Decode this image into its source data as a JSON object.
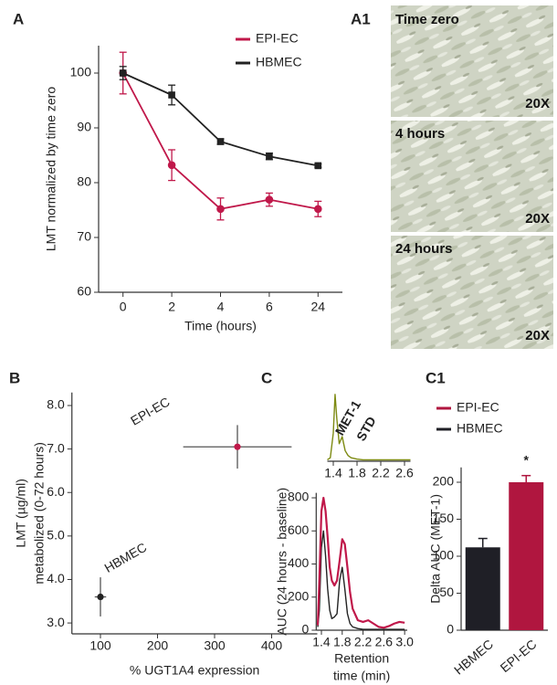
{
  "chart_data": [
    {
      "panel": "A",
      "type": "line",
      "categories": [
        "0",
        "2",
        "4",
        "6",
        "24"
      ],
      "xlabel": "Time (hours)",
      "ylabel": "LMT normalized by time zero",
      "ylim": [
        60,
        105
      ],
      "yticks": [
        60,
        70,
        80,
        90,
        100
      ],
      "legend": "upper right",
      "markers": true,
      "series": [
        {
          "name": "EPI-EC",
          "color": "#c0184a",
          "marker": "circle",
          "values": [
            100,
            83.2,
            75.2,
            76.9,
            75.2
          ],
          "errors": [
            3.8,
            2.8,
            2,
            1.2,
            1.4
          ]
        },
        {
          "name": "HBMEC",
          "color": "#222222",
          "marker": "square",
          "values": [
            100,
            96,
            87.5,
            84.8,
            83.1
          ],
          "errors": [
            1.2,
            1.8,
            0.5,
            0.6,
            0.3
          ]
        }
      ]
    },
    {
      "panel": "B",
      "type": "scatter",
      "xlabel": "% UGT1A4 expression",
      "ylabel": [
        "LMT (µg/ml)",
        "metabolized (0-72 hours)"
      ],
      "xlim": [
        50,
        480
      ],
      "xticks": [
        100,
        200,
        300,
        400
      ],
      "ylim": [
        2.75,
        8.3
      ],
      "yticks": [
        {
          "value": 3,
          "label": "3.0"
        },
        {
          "value": 4,
          "label": "4.0"
        },
        {
          "value": 5,
          "label": "5.0"
        },
        {
          "value": 6,
          "label": "6.0"
        },
        {
          "value": 7,
          "label": "7.0"
        },
        {
          "value": 8,
          "label": "8.0"
        }
      ],
      "series": [
        {
          "name": "EPI-EC",
          "color": "#c0184a",
          "x": [
            340
          ],
          "y": [
            7.05
          ],
          "xerr": [
            95
          ],
          "yerr": [
            0.5
          ]
        },
        {
          "name": "HBMEC",
          "color": "#222222",
          "x": [
            100
          ],
          "y": [
            3.6
          ],
          "xerr": [
            10
          ],
          "yerr": [
            0.45
          ]
        }
      ]
    },
    {
      "panel": "C",
      "type": "line",
      "annotation": [
        "MET-1",
        "STD"
      ],
      "xlim": [
        1.3,
        2.7
      ],
      "xticks": [
        1.4,
        1.8,
        2.2,
        2.6
      ],
      "ylim": [
        0,
        100
      ],
      "x": [
        1.3,
        1.35,
        1.4,
        1.43,
        1.46,
        1.5,
        1.55,
        1.6,
        1.65,
        1.7,
        1.8,
        1.9,
        2,
        2.2,
        2.4,
        2.6,
        2.7
      ],
      "series": [
        {
          "color": "#7d8a12",
          "values": [
            2,
            5,
            40,
            95,
            60,
            25,
            35,
            15,
            8,
            5,
            3,
            2,
            2,
            2,
            2,
            2,
            2
          ]
        }
      ]
    },
    {
      "type": "line",
      "xlabel": [
        "Retention",
        "time (min)"
      ],
      "ylabel": "AUC (24 hours - baseline)",
      "xlim": [
        1.3,
        3.05
      ],
      "xticks": [
        1.4,
        1.8,
        2.2,
        2.6,
        {
          "value": 3,
          "label": "3.0"
        }
      ],
      "ylim": [
        0,
        830
      ],
      "yticks": [
        0,
        200,
        400,
        600,
        800
      ],
      "x": [
        1.33,
        1.36,
        1.4,
        1.44,
        1.48,
        1.52,
        1.56,
        1.6,
        1.65,
        1.7,
        1.75,
        1.8,
        1.85,
        1.9,
        1.95,
        2,
        2.1,
        2.2,
        2.3,
        2.4,
        2.5,
        2.6,
        2.7,
        2.8,
        2.9,
        3
      ],
      "series": [
        {
          "color": "#222222",
          "values": [
            20,
            120,
            500,
            600,
            450,
            250,
            120,
            70,
            80,
            100,
            300,
            380,
            250,
            100,
            40,
            20,
            10,
            5,
            5,
            5,
            5,
            5,
            5,
            5,
            5,
            5
          ]
        },
        {
          "color": "#c0184a",
          "values": [
            30,
            300,
            720,
            800,
            720,
            560,
            380,
            300,
            270,
            300,
            420,
            550,
            520,
            380,
            230,
            130,
            60,
            50,
            60,
            40,
            20,
            15,
            25,
            40,
            50,
            45
          ]
        }
      ]
    },
    {
      "panel": "C1",
      "type": "bar",
      "categories": [
        "HBMEC",
        "EPI-EC"
      ],
      "ylabel": "Delta AUC (MET-1)",
      "ylim": [
        0,
        220
      ],
      "yticks": [
        0,
        50,
        100,
        150,
        200
      ],
      "legend": "top",
      "annotation": "*",
      "series": [
        {
          "name": "EPI-EC",
          "color": "#b0163f",
          "values": [
            null,
            200
          ],
          "errors": [
            null,
            9
          ]
        },
        {
          "name": "HBMEC",
          "color": "#1f1f26",
          "values": [
            112,
            null
          ],
          "errors": [
            12,
            null
          ]
        }
      ]
    }
  ],
  "micrographs": {
    "panel": "A1",
    "images": [
      {
        "label": "Time zero",
        "magnification": "20X"
      },
      {
        "label": "4 hours",
        "magnification": "20X"
      },
      {
        "label": "24 hours",
        "magnification": "20X"
      }
    ]
  }
}
